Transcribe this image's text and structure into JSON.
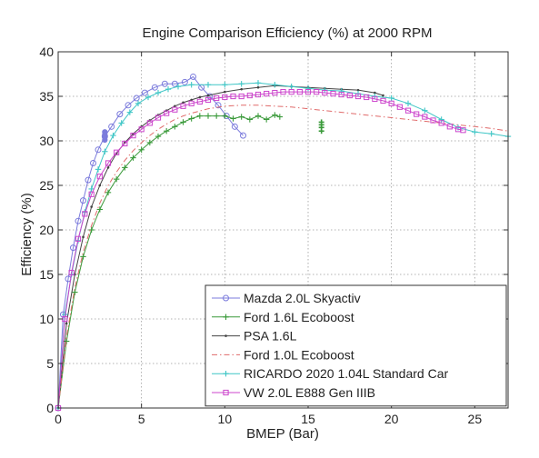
{
  "chart_data": {
    "type": "line",
    "title": "Engine Comparison Efficiency (%) at 2000 RPM",
    "xlabel": "BMEP (Bar)",
    "ylabel": "Efficiency (%)",
    "xlim": [
      0,
      27
    ],
    "ylim": [
      0,
      40
    ],
    "xticks": [
      0,
      5,
      10,
      15,
      20,
      25
    ],
    "yticks": [
      0,
      5,
      10,
      15,
      20,
      25,
      30,
      35,
      40
    ],
    "grid": true,
    "legend_position": "bottom-right",
    "series": [
      {
        "name": "Mazda 2.0L Skyactiv",
        "color": "#7b7bdc",
        "marker": "circle",
        "dash": "solid",
        "x": [
          0,
          0.3,
          0.6,
          0.9,
          1.2,
          1.5,
          1.8,
          2.1,
          2.4,
          2.8,
          3.2,
          3.7,
          4.2,
          4.7,
          5.2,
          5.8,
          6.4,
          7.0,
          7.6,
          8.1,
          8.6,
          9.1,
          9.6,
          10.1,
          10.6,
          11.1
        ],
        "y": [
          0,
          10.5,
          14.5,
          18.0,
          21.0,
          23.3,
          25.6,
          27.5,
          29.0,
          30.5,
          31.6,
          33.0,
          34.0,
          34.8,
          35.4,
          36.0,
          36.4,
          36.4,
          36.6,
          37.2,
          36.0,
          35.0,
          34.0,
          32.8,
          31.6,
          30.6
        ]
      },
      {
        "name": "Ford 1.6L Ecoboost",
        "color": "#3a9a3a",
        "marker": "plus",
        "dash": "solid",
        "x": [
          0,
          0.5,
          1.0,
          1.5,
          2.0,
          2.5,
          3.0,
          3.5,
          4.0,
          4.5,
          5.0,
          5.5,
          6.0,
          6.5,
          7.0,
          7.5,
          8.0,
          8.5,
          9.0,
          9.5,
          10.0,
          10.5,
          11.0,
          11.5,
          12.0,
          12.5,
          13.0,
          13.3
        ],
        "y": [
          0,
          7.5,
          13.0,
          17.0,
          20.0,
          22.3,
          24.2,
          25.7,
          27.0,
          28.1,
          29.0,
          29.8,
          30.5,
          31.1,
          31.6,
          32.1,
          32.5,
          32.8,
          32.8,
          32.8,
          32.8,
          32.5,
          32.7,
          32.4,
          32.8,
          32.4,
          32.9,
          32.7
        ]
      },
      {
        "name": "PSA 1.6L",
        "color": "#444444",
        "marker": "dot",
        "dash": "solid",
        "x": [
          0,
          0.5,
          1.0,
          1.5,
          2.0,
          2.5,
          3.0,
          3.5,
          4.0,
          4.5,
          5.0,
          5.5,
          6.0,
          6.5,
          7.0,
          7.5,
          8.0,
          8.5,
          9.0,
          10.0,
          11.0,
          12.0,
          13.0,
          14.0,
          15.0,
          16.0,
          17.0,
          18.0,
          19.0,
          19.5
        ],
        "y": [
          0,
          9.5,
          15.0,
          19.2,
          22.6,
          25.0,
          27.0,
          28.6,
          29.8,
          30.8,
          31.6,
          32.3,
          32.9,
          33.4,
          33.9,
          34.3,
          34.6,
          34.9,
          35.1,
          35.5,
          35.8,
          36.0,
          36.2,
          36.1,
          36.0,
          35.9,
          35.8,
          35.7,
          35.4,
          35.1
        ]
      },
      {
        "name": "Ford 1.0L Ecoboost",
        "color": "#e06a6a",
        "marker": "none",
        "dash": "dashdot",
        "x": [
          0,
          0.5,
          1.0,
          1.5,
          2.0,
          2.5,
          3.0,
          3.5,
          4.0,
          4.5,
          5.0,
          5.5,
          6.0,
          6.5,
          7.0,
          7.5,
          8.0,
          9.0,
          10.0,
          11.0,
          12.0,
          13.0,
          14.0,
          15.0,
          16.0,
          17.0,
          18.0,
          19.0,
          20.0,
          21.0,
          22.0,
          23.0,
          24.0,
          25.0,
          26.0,
          27.0
        ],
        "y": [
          0,
          8.0,
          13.5,
          17.5,
          20.5,
          23.0,
          25.0,
          26.5,
          27.8,
          28.9,
          29.8,
          30.6,
          31.3,
          31.9,
          32.4,
          32.8,
          33.1,
          33.6,
          33.9,
          34.0,
          34.0,
          33.9,
          33.8,
          33.6,
          33.4,
          33.2,
          33.0,
          32.8,
          32.6,
          32.4,
          32.2,
          32.0,
          31.8,
          31.6,
          31.4,
          31.1
        ]
      },
      {
        "name": "RICARDO 2020 1.04L Standard Car",
        "color": "#3fc6c6",
        "marker": "plus",
        "dash": "solid",
        "x": [
          0,
          0.4,
          0.8,
          1.2,
          1.6,
          2.0,
          2.4,
          2.8,
          3.3,
          3.8,
          4.3,
          4.8,
          5.4,
          6.0,
          6.6,
          7.2,
          8.0,
          9.0,
          10.0,
          11.0,
          12.0,
          13.0,
          14.0,
          15.0,
          16.0,
          17.0,
          18.0,
          19.0,
          20.0,
          21.0,
          22.0,
          23.0,
          24.0,
          25.0,
          26.0,
          27.0
        ],
        "y": [
          0,
          10.5,
          15.0,
          18.8,
          22.0,
          24.6,
          26.8,
          28.8,
          30.6,
          32.0,
          33.2,
          34.2,
          34.9,
          35.4,
          35.8,
          36.1,
          36.3,
          36.3,
          36.3,
          36.4,
          36.5,
          36.3,
          36.1,
          35.9,
          35.7,
          35.6,
          35.3,
          35.0,
          34.8,
          34.2,
          33.4,
          32.4,
          31.5,
          31.0,
          30.8,
          30.5
        ]
      },
      {
        "name": "VW 2.0L E888 Gen IIIB",
        "color": "#cc44cc",
        "marker": "square",
        "dash": "solid",
        "x": [
          0,
          0.4,
          0.8,
          1.2,
          1.6,
          2.0,
          2.5,
          3.0,
          3.5,
          4.0,
          4.5,
          5.0,
          5.5,
          6.0,
          6.5,
          7.0,
          7.5,
          8.0,
          8.5,
          9.0,
          9.5,
          10.0,
          10.5,
          11.0,
          11.5,
          12.0,
          12.5,
          13.0,
          13.5,
          14.0,
          14.5,
          15.0,
          15.5,
          16.0,
          16.5,
          17.0,
          17.5,
          18.0,
          18.5,
          19.0,
          19.5,
          20.0,
          20.5,
          21.0,
          21.5,
          22.0,
          22.5,
          23.0,
          23.5,
          24.0,
          24.3
        ],
        "y": [
          0,
          10.0,
          15.2,
          19.0,
          21.8,
          24.0,
          26.0,
          27.5,
          28.7,
          29.7,
          30.6,
          31.3,
          32.0,
          32.6,
          33.1,
          33.5,
          33.9,
          34.2,
          34.4,
          34.6,
          34.8,
          34.9,
          35.0,
          35.0,
          35.1,
          35.2,
          35.3,
          35.4,
          35.5,
          35.5,
          35.5,
          35.5,
          35.5,
          35.4,
          35.3,
          35.2,
          35.1,
          35.0,
          34.9,
          34.7,
          34.5,
          34.2,
          33.8,
          33.4,
          33.0,
          32.7,
          32.3,
          32.0,
          31.6,
          31.3,
          31.2
        ]
      }
    ],
    "extra_points": [
      {
        "series": 0,
        "x": [
          2.8,
          2.8,
          2.8,
          2.8
        ],
        "y": [
          30.1,
          30.4,
          30.7,
          31.0
        ]
      },
      {
        "series": 1,
        "x": [
          15.8,
          15.8,
          15.8,
          15.8
        ],
        "y": [
          31.1,
          31.5,
          31.8,
          32.1
        ]
      }
    ]
  }
}
